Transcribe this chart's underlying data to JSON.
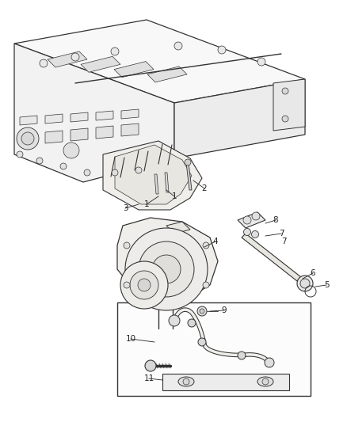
{
  "background_color": "#ffffff",
  "line_color": "#333333",
  "label_color": "#222222",
  "figsize": [
    4.38,
    5.33
  ],
  "dpi": 100,
  "line_width": 0.7,
  "engine_color": "#f5f5f5",
  "part_fill": "#f0f0f0"
}
